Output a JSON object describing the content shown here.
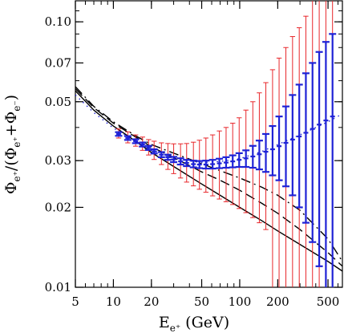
{
  "chart_data": {
    "type": "line",
    "title": "",
    "xlabel": {
      "main": "E",
      "sub": "e⁺",
      "unit": "(GeV)"
    },
    "ylabel": {
      "main": "Φ",
      "sub": "e⁺",
      "mid": "/(Φ",
      "sub2": "e⁺",
      "plus": "+Φ",
      "sub3": "e⁻",
      "close": ")"
    },
    "x_scale": "log",
    "y_scale": "log",
    "xlim": [
      5,
      650
    ],
    "ylim": [
      0.01,
      0.12
    ],
    "x_ticks": [
      {
        "value": 5,
        "label": "5"
      },
      {
        "value": 10,
        "label": "10"
      },
      {
        "value": 20,
        "label": "20"
      },
      {
        "value": 50,
        "label": "50"
      },
      {
        "value": 100,
        "label": "100"
      },
      {
        "value": 200,
        "label": "200"
      },
      {
        "value": 500,
        "label": "500"
      }
    ],
    "y_ticks": [
      {
        "value": 0.01,
        "label": "0.01"
      },
      {
        "value": 0.02,
        "label": "0.02"
      },
      {
        "value": 0.03,
        "label": "0.03"
      },
      {
        "value": 0.05,
        "label": "0.05"
      },
      {
        "value": 0.07,
        "label": "0.07"
      },
      {
        "value": 0.1,
        "label": "0.10"
      }
    ],
    "colors": {
      "red": "#e8262a",
      "blue": "#1f22d6",
      "black": "#000000"
    },
    "series": [
      {
        "style": "solid",
        "x": [
          5,
          7,
          10,
          15,
          20,
          30,
          50,
          70,
          100,
          150,
          200,
          300,
          500,
          650
        ],
        "y": [
          0.055,
          0.0465,
          0.0405,
          0.0355,
          0.0322,
          0.0285,
          0.0245,
          0.0222,
          0.02,
          0.0178,
          0.0163,
          0.0145,
          0.0125,
          0.0115
        ]
      },
      {
        "style": "long-dash",
        "x": [
          5,
          7,
          10,
          15,
          20,
          30,
          50,
          70,
          100,
          150,
          200,
          300,
          500,
          650
        ],
        "y": [
          0.056,
          0.0475,
          0.0415,
          0.0368,
          0.0338,
          0.0308,
          0.0272,
          0.0253,
          0.0232,
          0.0207,
          0.019,
          0.0165,
          0.0135,
          0.012
        ]
      },
      {
        "style": "dash-dot",
        "x": [
          5,
          7,
          10,
          15,
          20,
          30,
          50,
          70,
          100,
          150,
          200,
          300,
          500,
          650
        ],
        "y": [
          0.057,
          0.048,
          0.042,
          0.0372,
          0.0345,
          0.032,
          0.0292,
          0.0275,
          0.0258,
          0.0238,
          0.0222,
          0.0195,
          0.0152,
          0.0125
        ]
      },
      {
        "style": "dotted",
        "x": [
          5,
          7,
          10,
          15,
          20,
          30,
          50,
          70,
          100,
          150,
          200,
          300,
          500,
          650
        ],
        "y": [
          0.053,
          0.0455,
          0.0398,
          0.0355,
          0.033,
          0.0305,
          0.0295,
          0.0298,
          0.0305,
          0.0325,
          0.0345,
          0.0375,
          0.042,
          0.045
        ]
      }
    ],
    "error_bars": [
      {
        "color": "red",
        "x": [
          11,
          13,
          15,
          17,
          19,
          21,
          24,
          27,
          30,
          34,
          38,
          43,
          48,
          54,
          61,
          69,
          78,
          88,
          99,
          112,
          127,
          143,
          161,
          182,
          205,
          232,
          262,
          296,
          334,
          377,
          426,
          481,
          543
        ],
        "y_low": [
          0.0365,
          0.035,
          0.034,
          0.0328,
          0.0315,
          0.0303,
          0.029,
          0.0278,
          0.0268,
          0.0258,
          0.0249,
          0.0241,
          0.0234,
          0.0228,
          0.0221,
          0.0215,
          0.021,
          0.0205,
          0.0198,
          0.0191,
          0.0183,
          0.0175,
          0.0165,
          0.01,
          0.01,
          0.01,
          0.01,
          0.01,
          0.01,
          0.01,
          0.01,
          0.01,
          0.01
        ],
        "y_high": [
          0.0395,
          0.0385,
          0.0375,
          0.0368,
          0.036,
          0.0355,
          0.035,
          0.0348,
          0.0347,
          0.0347,
          0.0348,
          0.0352,
          0.0358,
          0.0365,
          0.0375,
          0.0388,
          0.04,
          0.0415,
          0.0435,
          0.0465,
          0.05,
          0.054,
          0.059,
          0.066,
          0.073,
          0.08,
          0.088,
          0.095,
          0.105,
          0.12,
          0.12,
          0.12,
          0.12
        ]
      },
      {
        "color": "blue",
        "x": [
          11,
          13,
          15,
          17,
          19,
          21,
          24,
          27,
          30,
          34,
          38,
          43,
          48,
          54,
          61,
          69,
          78,
          88,
          99,
          112,
          127,
          143,
          161,
          182,
          205,
          232,
          262,
          296,
          334,
          377,
          426,
          481,
          543
        ],
        "y": [
          0.0378,
          0.0365,
          0.0355,
          0.0345,
          0.0335,
          0.0325,
          0.0316,
          0.0309,
          0.0303,
          0.0298,
          0.0294,
          0.0291,
          0.029,
          0.029,
          0.0291,
          0.0293,
          0.0295,
          0.0298,
          0.0302,
          0.0306,
          0.0311,
          0.0317,
          0.0324,
          0.0331,
          0.034,
          0.035,
          0.036,
          0.037,
          0.0382,
          0.0395,
          0.041,
          0.0425,
          0.044
        ],
        "y_low": [
          0.0372,
          0.0359,
          0.0349,
          0.0339,
          0.0329,
          0.0319,
          0.0309,
          0.0302,
          0.0296,
          0.029,
          0.0286,
          0.0283,
          0.0281,
          0.028,
          0.028,
          0.0281,
          0.0282,
          0.0283,
          0.0284,
          0.0284,
          0.0282,
          0.0278,
          0.0272,
          0.0264,
          0.0253,
          0.024,
          0.0222,
          0.02,
          0.0175,
          0.0148,
          0.012,
          0.01,
          0.01
        ],
        "y_high": [
          0.0384,
          0.0371,
          0.0361,
          0.0351,
          0.0341,
          0.0331,
          0.0323,
          0.0316,
          0.031,
          0.0306,
          0.0302,
          0.03,
          0.0299,
          0.03,
          0.0302,
          0.0305,
          0.0309,
          0.0314,
          0.032,
          0.0328,
          0.0341,
          0.0357,
          0.0378,
          0.0405,
          0.044,
          0.048,
          0.053,
          0.058,
          0.064,
          0.07,
          0.077,
          0.084,
          0.09
        ]
      }
    ]
  }
}
